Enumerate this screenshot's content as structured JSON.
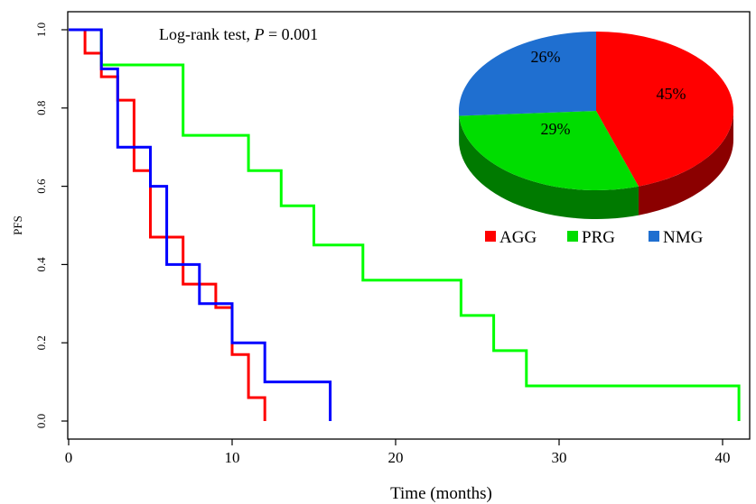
{
  "chart_data": {
    "type": "line",
    "step": true,
    "xlabel": "Time (months)",
    "ylabel": "PFS",
    "xlim": [
      0,
      41
    ],
    "ylim": [
      0,
      1.0
    ],
    "xticks": [
      0,
      10,
      20,
      30,
      40
    ],
    "yticks": [
      0.0,
      0.2,
      0.4,
      0.6,
      0.8,
      1.0
    ],
    "x_tick_labels": [
      "0",
      "10",
      "20",
      "30",
      "40"
    ],
    "y_tick_labels": [
      "0.0",
      "0.2",
      "0.4",
      "0.6",
      "0.8",
      "1.0"
    ],
    "grid": false,
    "annotation": {
      "prefix": "Log-rank test, ",
      "p_symbol": "P",
      "suffix": " = 0.001"
    },
    "series": [
      {
        "name": "AGG",
        "color": "#ff0000",
        "x": [
          0,
          1,
          2,
          3,
          4,
          5,
          7,
          8,
          9,
          10,
          11,
          12
        ],
        "y": [
          1.0,
          0.94,
          0.88,
          0.82,
          0.64,
          0.47,
          0.35,
          0.35,
          0.29,
          0.17,
          0.06,
          0.0
        ]
      },
      {
        "name": "PRG",
        "color": "#00ff00",
        "x": [
          0,
          2,
          7,
          11,
          13,
          15,
          18,
          24,
          26,
          28,
          41
        ],
        "y": [
          1.0,
          0.91,
          0.73,
          0.64,
          0.55,
          0.45,
          0.36,
          0.27,
          0.18,
          0.09,
          0.0
        ]
      },
      {
        "name": "NMG",
        "color": "#0000ff",
        "x": [
          0,
          2,
          3,
          5,
          6,
          8,
          10,
          12,
          16
        ],
        "y": [
          1.0,
          0.9,
          0.7,
          0.6,
          0.4,
          0.3,
          0.2,
          0.1,
          0.0
        ]
      }
    ],
    "pie": {
      "type": "pie",
      "style": "3d",
      "slices": [
        {
          "label": "45%",
          "value": 45,
          "color": "#ff0000",
          "side_color": "#8b0000",
          "group": "AGG"
        },
        {
          "label": "29%",
          "value": 29,
          "color": "#00dd00",
          "side_color": "#007a00",
          "group": "PRG"
        },
        {
          "label": "26%",
          "value": 26,
          "color": "#1f6fd0",
          "side_color": "#0d3f80",
          "group": "NMG"
        }
      ]
    },
    "legend": {
      "placement": "right, below pie",
      "entries": [
        {
          "label": "AGG",
          "color": "#ff0000"
        },
        {
          "label": "PRG",
          "color": "#00dd00"
        },
        {
          "label": "NMG",
          "color": "#1f6fd0"
        }
      ]
    }
  }
}
